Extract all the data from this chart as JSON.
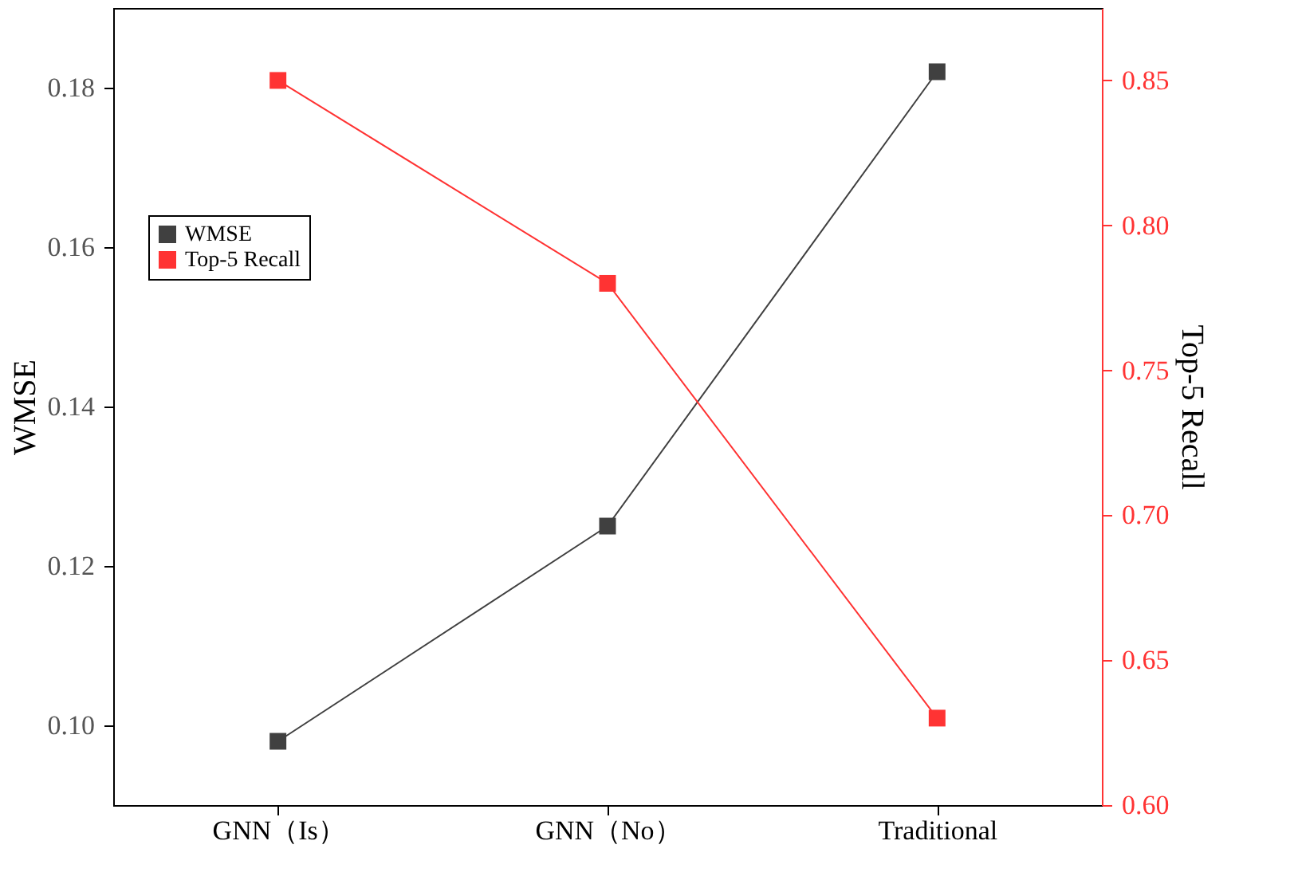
{
  "chart_data": {
    "type": "line",
    "categories": [
      "GNN（Is）",
      "GNN（No）",
      "Traditional"
    ],
    "series": [
      {
        "name": "WMSE",
        "color": "#404040",
        "values": [
          0.098,
          0.125,
          0.182
        ]
      },
      {
        "name": "Top-5 Recall",
        "color": "#ff3333",
        "values": [
          0.85,
          0.78,
          0.63
        ],
        "axis": "y2"
      }
    ],
    "ylabel": "WMSE",
    "y2label": "Top-5 Recall",
    "ylim": [
      0.09,
      0.19
    ],
    "yticks": [
      {
        "value": 0.1,
        "label": "0.10"
      },
      {
        "value": 0.12,
        "label": "0.12"
      },
      {
        "value": 0.14,
        "label": "0.14"
      },
      {
        "value": 0.16,
        "label": "0.16"
      },
      {
        "value": 0.18,
        "label": "0.18"
      }
    ],
    "y2lim": [
      0.6,
      0.875
    ],
    "y2ticks": [
      {
        "value": 0.6,
        "label": "0.60"
      },
      {
        "value": 0.65,
        "label": "0.65"
      },
      {
        "value": 0.7,
        "label": "0.70"
      },
      {
        "value": 0.75,
        "label": "0.75"
      },
      {
        "value": 0.8,
        "label": "0.80"
      },
      {
        "value": 0.85,
        "label": "0.85"
      }
    ],
    "marker": "square",
    "line_style": "solid",
    "grid": false,
    "legend": "left"
  }
}
